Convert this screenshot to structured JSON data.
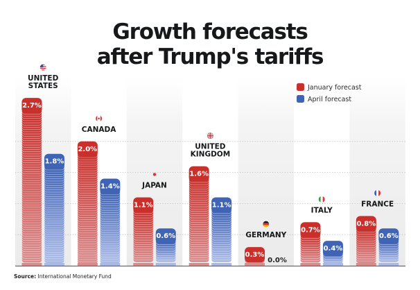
{
  "chart_data": {
    "type": "bar",
    "title": "Growth forecasts after Trump's tariffs",
    "title_lines": [
      "Growth forecasts",
      "after Trump's tariffs"
    ],
    "xlabel": "",
    "ylabel": "",
    "ylim": [
      0,
      2.7
    ],
    "grid": true,
    "legend_position": "top-right",
    "categories": [
      {
        "name": "UNITED STATES",
        "lines": [
          "UNITED",
          "STATES"
        ],
        "flag": "us-flag-icon"
      },
      {
        "name": "CANADA",
        "lines": [
          "CANADA"
        ],
        "flag": "canada-flag-icon"
      },
      {
        "name": "JAPAN",
        "lines": [
          "JAPAN"
        ],
        "flag": "japan-flag-icon"
      },
      {
        "name": "UNITED KINGDOM",
        "lines": [
          "UNITED",
          "KINGDOM"
        ],
        "flag": "uk-flag-icon"
      },
      {
        "name": "GERMANY",
        "lines": [
          "GERMANY"
        ],
        "flag": "germany-flag-icon"
      },
      {
        "name": "ITALY",
        "lines": [
          "ITALY"
        ],
        "flag": "italy-flag-icon"
      },
      {
        "name": "FRANCE",
        "lines": [
          "FRANCE"
        ],
        "flag": "france-flag-icon"
      }
    ],
    "series": [
      {
        "name": "January forecast",
        "color": "#c9302c",
        "fade_color": "#d98a8a",
        "values": [
          2.7,
          2.0,
          1.1,
          1.6,
          0.3,
          0.7,
          0.8
        ],
        "labels": [
          "2.7%",
          "2.0%",
          "1.1%",
          "1.6%",
          "0.3%",
          "0.7%",
          "0.8%"
        ]
      },
      {
        "name": "April forecast",
        "color": "#3f63b5",
        "fade_color": "#a9b9e6",
        "values": [
          1.8,
          1.4,
          0.6,
          1.1,
          0.0,
          0.4,
          0.6
        ],
        "labels": [
          "1.8%",
          "1.4%",
          "0.6%",
          "1.1%",
          "0.0%",
          "0.4%",
          "0.6%"
        ]
      }
    ],
    "gridlines": [
      0.5,
      1.0,
      1.5,
      2.0
    ]
  },
  "source": {
    "label": "Source:",
    "text": "International Monetary  Fund"
  }
}
